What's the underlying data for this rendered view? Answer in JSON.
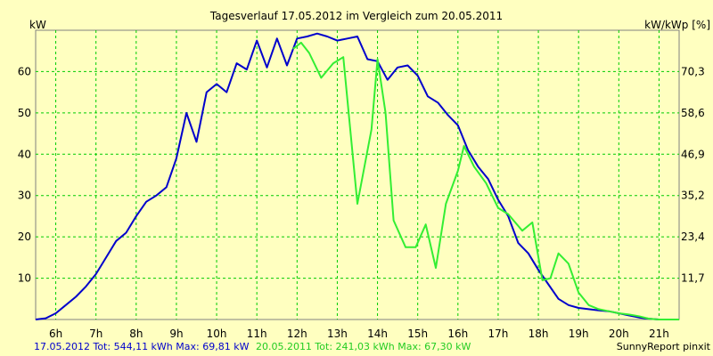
{
  "chart_data": {
    "type": "line",
    "title": "Tagesverlauf 17.05.2012 im Vergleich zum 20.05.2011",
    "ylabel_left": "kW",
    "ylabel_right": "kW/kWp [%]",
    "x_unit": "hours",
    "xlim": [
      5.5,
      21.5
    ],
    "ylim": [
      0,
      70
    ],
    "x_ticks": [
      6,
      7,
      8,
      9,
      10,
      11,
      12,
      13,
      14,
      15,
      16,
      17,
      18,
      19,
      20,
      21
    ],
    "x_tick_labels": [
      "6h",
      "7h",
      "8h",
      "9h",
      "10h",
      "11h",
      "12h",
      "13h",
      "14h",
      "15h",
      "16h",
      "17h",
      "18h",
      "19h",
      "20h",
      "21h"
    ],
    "y_ticks_left": [
      10,
      20,
      30,
      40,
      50,
      60
    ],
    "y_ticks_right": [
      {
        "value": 10,
        "label": "11,7"
      },
      {
        "value": 20,
        "label": "23,4"
      },
      {
        "value": 30,
        "label": "35,2"
      },
      {
        "value": 40,
        "label": "46,9"
      },
      {
        "value": 50,
        "label": "58,6"
      },
      {
        "value": 60,
        "label": "70,3"
      }
    ],
    "grid": true,
    "colors": {
      "background": "#ffffc0",
      "grid": "#00cc00",
      "series_2012": "#0000cc",
      "series_2011": "#33ee33"
    },
    "series": [
      {
        "name": "17.05.2012",
        "color": "#0000cc",
        "points": [
          [
            5.5,
            0
          ],
          [
            5.75,
            0.3
          ],
          [
            6.0,
            1.5
          ],
          [
            6.25,
            3.5
          ],
          [
            6.5,
            5.5
          ],
          [
            6.75,
            8
          ],
          [
            7.0,
            11
          ],
          [
            7.25,
            15
          ],
          [
            7.5,
            19
          ],
          [
            7.75,
            21
          ],
          [
            8.0,
            25
          ],
          [
            8.25,
            28.5
          ],
          [
            8.5,
            30
          ],
          [
            8.75,
            32
          ],
          [
            9.0,
            39
          ],
          [
            9.25,
            50
          ],
          [
            9.5,
            43
          ],
          [
            9.75,
            55
          ],
          [
            10.0,
            57
          ],
          [
            10.25,
            55
          ],
          [
            10.5,
            62
          ],
          [
            10.75,
            60.5
          ],
          [
            11.0,
            67.5
          ],
          [
            11.25,
            61
          ],
          [
            11.5,
            68
          ],
          [
            11.75,
            61.5
          ],
          [
            12.0,
            68
          ],
          [
            12.25,
            68.5
          ],
          [
            12.5,
            69.2
          ],
          [
            12.75,
            68.5
          ],
          [
            13.0,
            67.5
          ],
          [
            13.25,
            68
          ],
          [
            13.5,
            68.5
          ],
          [
            13.75,
            63
          ],
          [
            14.0,
            62.5
          ],
          [
            14.25,
            58
          ],
          [
            14.5,
            61
          ],
          [
            14.75,
            61.5
          ],
          [
            15.0,
            59
          ],
          [
            15.25,
            54
          ],
          [
            15.5,
            52.5
          ],
          [
            15.75,
            49.5
          ],
          [
            16.0,
            47
          ],
          [
            16.25,
            41
          ],
          [
            16.5,
            37
          ],
          [
            16.75,
            34
          ],
          [
            17.0,
            29
          ],
          [
            17.25,
            25
          ],
          [
            17.5,
            18.5
          ],
          [
            17.75,
            16
          ],
          [
            18.0,
            12
          ],
          [
            18.25,
            8.5
          ],
          [
            18.5,
            5
          ],
          [
            18.75,
            3.5
          ],
          [
            19.0,
            2.8
          ],
          [
            19.25,
            2.5
          ],
          [
            19.5,
            2.2
          ],
          [
            19.75,
            2
          ],
          [
            20.0,
            1.5
          ],
          [
            20.25,
            1
          ],
          [
            20.5,
            0.5
          ],
          [
            20.75,
            0.2
          ],
          [
            21.0,
            0
          ],
          [
            21.5,
            0
          ]
        ]
      },
      {
        "name": "20.05.2011",
        "color": "#33ee33",
        "points": [
          [
            11.9,
            65.5
          ],
          [
            12.1,
            67
          ],
          [
            12.3,
            64.5
          ],
          [
            12.6,
            58.5
          ],
          [
            12.9,
            62
          ],
          [
            13.15,
            63.5
          ],
          [
            13.5,
            28
          ],
          [
            13.85,
            46
          ],
          [
            14.0,
            63
          ],
          [
            14.2,
            50
          ],
          [
            14.4,
            24
          ],
          [
            14.7,
            17.5
          ],
          [
            14.95,
            17.5
          ],
          [
            15.2,
            23
          ],
          [
            15.45,
            12.5
          ],
          [
            15.7,
            28
          ],
          [
            16.0,
            36
          ],
          [
            16.15,
            42
          ],
          [
            16.4,
            37
          ],
          [
            16.7,
            33
          ],
          [
            17.0,
            27
          ],
          [
            17.25,
            25.5
          ],
          [
            17.6,
            21.5
          ],
          [
            17.85,
            23.5
          ],
          [
            18.1,
            9.5
          ],
          [
            18.3,
            10
          ],
          [
            18.5,
            16
          ],
          [
            18.75,
            13.5
          ],
          [
            19.0,
            6.5
          ],
          [
            19.25,
            3.5
          ],
          [
            19.5,
            2.5
          ],
          [
            19.75,
            2
          ],
          [
            20.0,
            1.5
          ],
          [
            20.25,
            1.2
          ],
          [
            20.5,
            0.8
          ],
          [
            20.75,
            0.2
          ],
          [
            21.0,
            0
          ],
          [
            21.5,
            0
          ]
        ]
      }
    ],
    "footer": {
      "seg1_text": "17.05.2012 Tot: 544,11 kWh Max: 69,81 kW",
      "seg2_text": "20.05.2011 Tot: 241,03 kWh Max: 67,30 kW",
      "credit": "SunnyReport pinxit"
    }
  }
}
